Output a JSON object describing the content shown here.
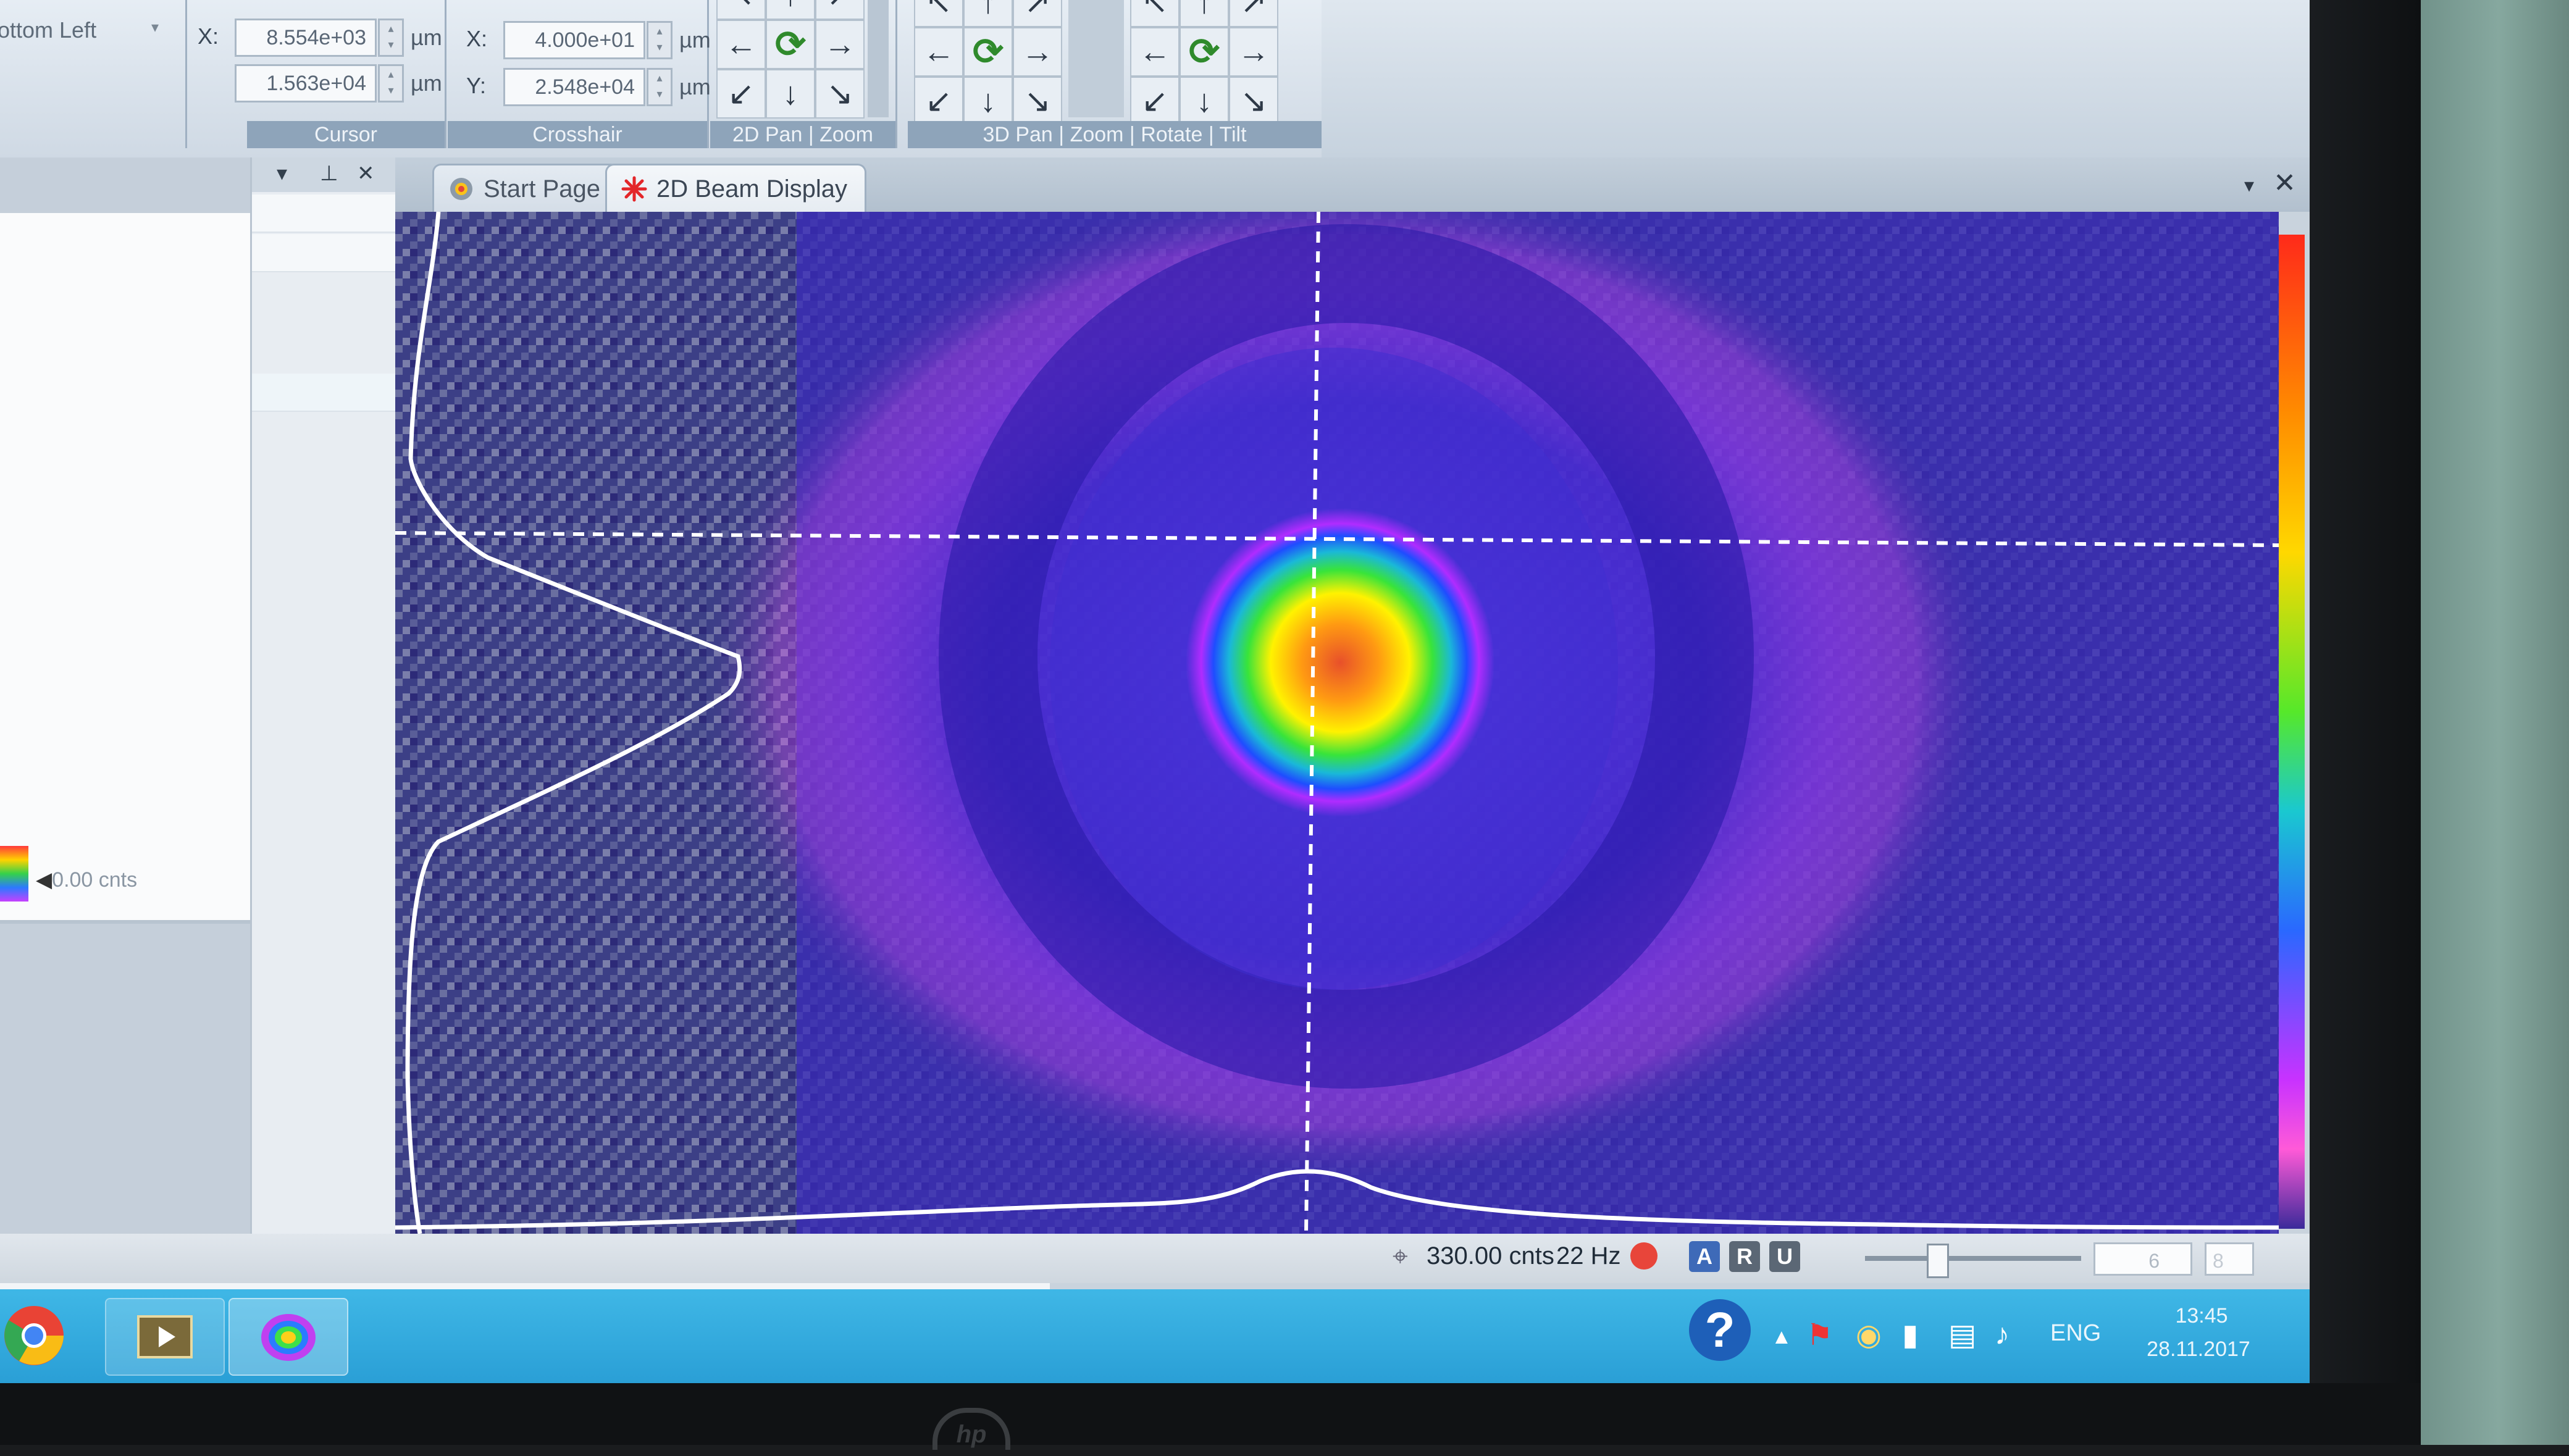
{
  "ribbon": {
    "position_label": "ottom Left",
    "cursor": {
      "label": "Cursor",
      "x_label": "X:",
      "x_value": "8.554e+03",
      "y_value": "1.563e+04",
      "unit": "µm"
    },
    "crosshair": {
      "label": "Crosshair",
      "x_label": "X:",
      "x_value": "4.000e+01",
      "y_label": "Y:",
      "y_value": "2.548e+04",
      "unit": "µm"
    },
    "pan2d_label": "2D Pan | Zoom",
    "pan3d_label": "3D Pan | Zoom | Rotate | Tilt",
    "arrows": [
      "↖",
      "↑",
      "↗",
      "←",
      "⟳",
      "→",
      "↙",
      "↓",
      "↘"
    ]
  },
  "left_panel": {
    "legend_label": "0.00 cnts",
    "pin_icon": "pin-icon",
    "close_glyph": "✕",
    "menu_glyph": "▾",
    "pin_glyph": "⊥"
  },
  "tabs": [
    {
      "label": "Start Page",
      "icon": "camera-icon"
    },
    {
      "label": "2D Beam Display",
      "icon": "laser-icon"
    }
  ],
  "tabbar": {
    "menu_glyph": "▾",
    "close_glyph": "✕"
  },
  "status": {
    "counts": "330.00 cnts",
    "rate": "22 Hz",
    "btn_a": "A",
    "btn_r": "R",
    "btn_u": "U",
    "slider_value": "6",
    "slider_max": "8",
    "slider_fraction": 0.12
  },
  "taskbar": {
    "help_glyph": "?",
    "tray_up": "▲",
    "lang": "ENG",
    "time": "13:45",
    "date": "28.11.2017"
  },
  "colors": {
    "background": "#2c2a6e",
    "beam_core": "#ff6a1a",
    "taskbar": "#2a9fd6",
    "accent_text": "#1f2b38"
  },
  "monitor": {
    "brand": "hp"
  }
}
